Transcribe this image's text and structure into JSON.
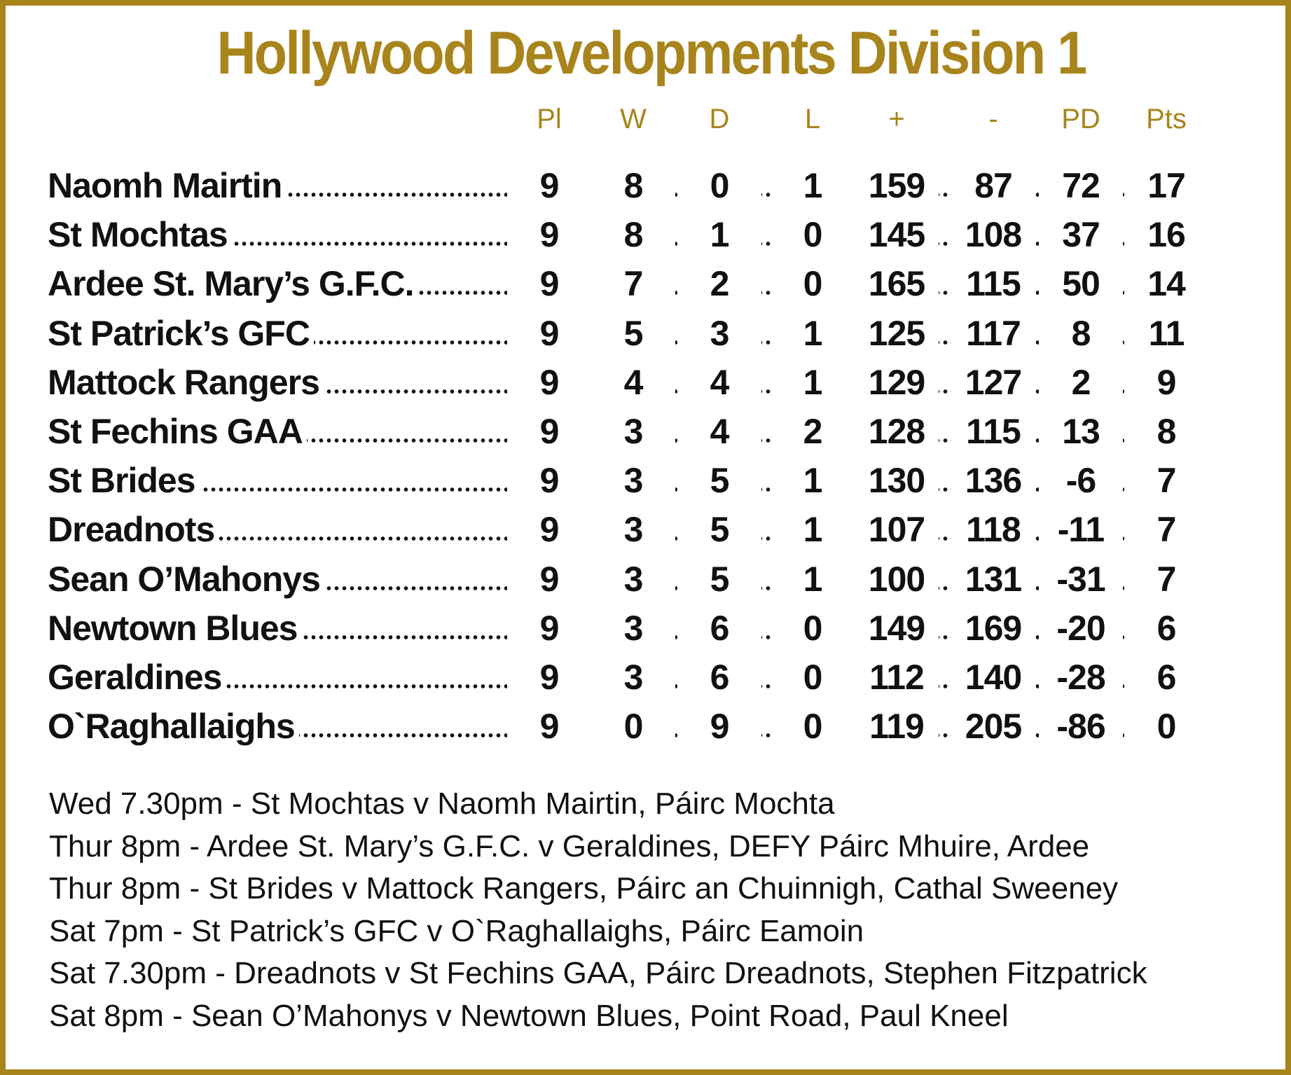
{
  "title": "Hollywood Developments Division 1",
  "columns": [
    "Pl",
    "W",
    "D",
    "L",
    "+",
    "-",
    "PD",
    "Pts"
  ],
  "teams": [
    {
      "name": "Naomh Mairtin",
      "stats": [
        "9",
        "8",
        "0",
        "1",
        "159",
        "87",
        "72",
        "17"
      ]
    },
    {
      "name": "St Mochtas",
      "stats": [
        "9",
        "8",
        "1",
        "0",
        "145",
        "108",
        "37",
        "16"
      ]
    },
    {
      "name": "Ardee St. Mary’s G.F.C.",
      "stats": [
        "9",
        "7",
        "2",
        "0",
        "165",
        "115",
        "50",
        "14"
      ]
    },
    {
      "name": "St Patrick’s GFC",
      "stats": [
        "9",
        "5",
        "3",
        "1",
        "125",
        "117",
        "8",
        "11"
      ]
    },
    {
      "name": "Mattock Rangers",
      "stats": [
        "9",
        "4",
        "4",
        "1",
        "129",
        "127",
        "2",
        "9"
      ]
    },
    {
      "name": "St Fechins GAA",
      "stats": [
        "9",
        "3",
        "4",
        "2",
        "128",
        "115",
        "13",
        "8"
      ]
    },
    {
      "name": "St Brides",
      "stats": [
        "9",
        "3",
        "5",
        "1",
        "130",
        "136",
        "-6",
        "7"
      ]
    },
    {
      "name": "Dreadnots",
      "stats": [
        "9",
        "3",
        "5",
        "1",
        "107",
        "118",
        "-11",
        "7"
      ]
    },
    {
      "name": "Sean O’Mahonys",
      "stats": [
        "9",
        "3",
        "5",
        "1",
        "100",
        "131",
        "-31",
        "7"
      ]
    },
    {
      "name": "Newtown Blues",
      "stats": [
        "9",
        "3",
        "6",
        "0",
        "149",
        "169",
        "-20",
        "6"
      ]
    },
    {
      "name": "Geraldines",
      "stats": [
        "9",
        "3",
        "6",
        "0",
        "112",
        "140",
        "-28",
        "6"
      ]
    },
    {
      "name": "O`Raghallaighs",
      "stats": [
        "9",
        "0",
        "9",
        "0",
        "119",
        "205",
        "-86",
        "0"
      ]
    }
  ],
  "fixtures": [
    "Wed 7.30pm - St Mochtas v Naomh Mairtin, Páirc Mochta",
    "Thur 8pm - Ardee St. Mary’s G.F.C. v Geraldines, DEFY Páirc Mhuire, Ardee",
    "Thur 8pm - St Brides v Mattock Rangers, Páirc an Chuinnigh, Cathal Sweeney",
    "Sat 7pm - St Patrick’s GFC v O`Raghallaighs, Páirc Eamoin",
    "Sat 7.30pm - Dreadnots v St Fechins GAA, Páirc Dreadnots, Stephen Fitzpatrick",
    "Sat 8pm - Sean O’Mahonys v Newtown Blues, Point Road, Paul Kneel"
  ]
}
